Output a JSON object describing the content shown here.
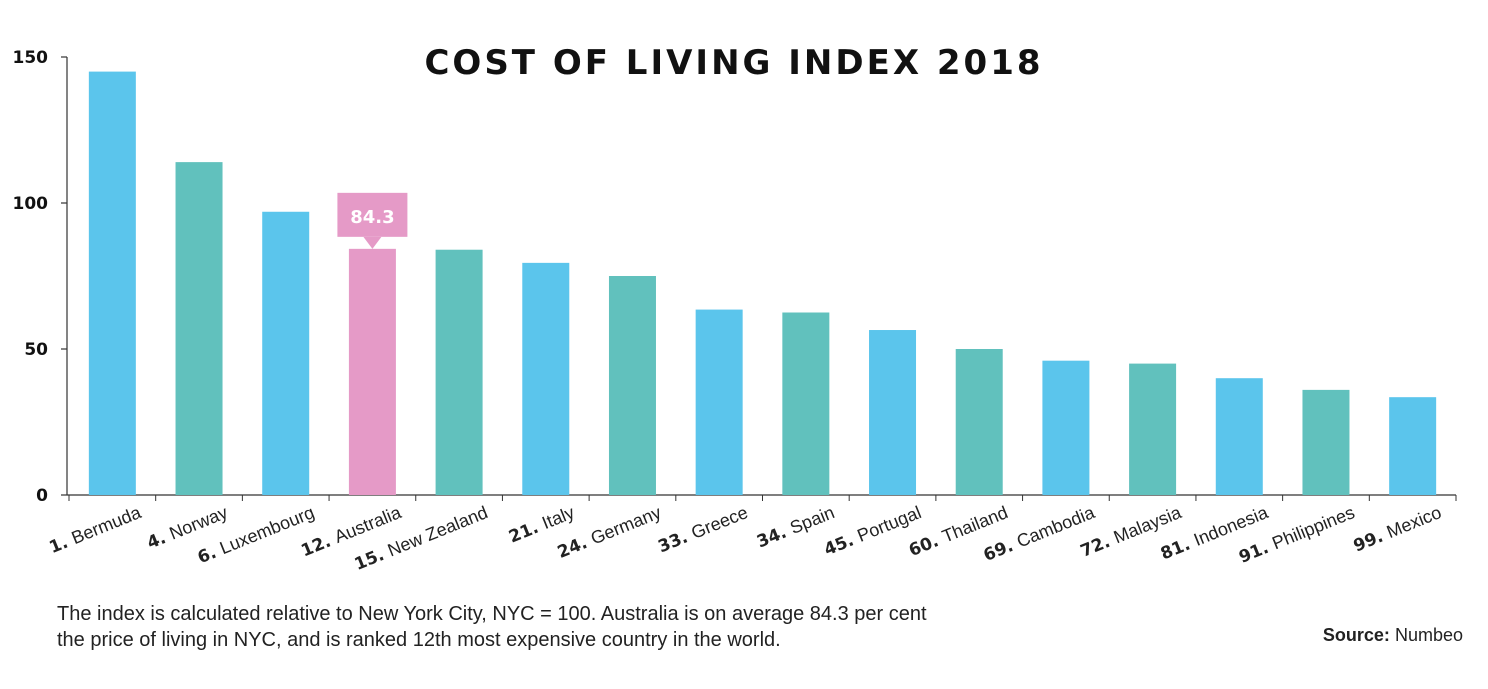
{
  "chart_data": {
    "type": "bar",
    "title": "COST OF LIVING INDEX 2018",
    "xlabel": "",
    "ylabel": "",
    "ylim": [
      0,
      150
    ],
    "yticks": [
      "0",
      "50",
      "100",
      "150"
    ],
    "grid": false,
    "categories": [
      {
        "rank": "1.",
        "name": "Bermuda"
      },
      {
        "rank": "4.",
        "name": "Norway"
      },
      {
        "rank": "6.",
        "name": "Luxembourg"
      },
      {
        "rank": "12.",
        "name": "Australia"
      },
      {
        "rank": "15.",
        "name": "New Zealand"
      },
      {
        "rank": "21.",
        "name": "Italy"
      },
      {
        "rank": "24.",
        "name": "Germany"
      },
      {
        "rank": "33.",
        "name": "Greece"
      },
      {
        "rank": "34.",
        "name": "Spain"
      },
      {
        "rank": "45.",
        "name": "Portugal"
      },
      {
        "rank": "60.",
        "name": "Thailand"
      },
      {
        "rank": "69.",
        "name": "Cambodia"
      },
      {
        "rank": "72.",
        "name": "Malaysia"
      },
      {
        "rank": "81.",
        "name": "Indonesia"
      },
      {
        "rank": "91.",
        "name": "Philippines"
      },
      {
        "rank": "99.",
        "name": "Mexico"
      }
    ],
    "values": [
      145,
      114,
      97,
      84.3,
      84,
      79.5,
      75,
      63.5,
      62.5,
      56.5,
      50,
      46,
      45,
      40,
      36,
      33.5
    ],
    "colors": [
      "#5bc5ec",
      "#61c1bd",
      "#5bc5ec",
      "#e59ac7",
      "#61c1bd",
      "#5bc5ec",
      "#61c1bd",
      "#5bc5ec",
      "#61c1bd",
      "#5bc5ec",
      "#61c1bd",
      "#5bc5ec",
      "#61c1bd",
      "#5bc5ec",
      "#61c1bd",
      "#5bc5ec"
    ],
    "highlight": {
      "index": 3,
      "label": "84.3",
      "color": "#e59ac7"
    }
  },
  "footnote": {
    "line1": "The index is calculated relative to New York City, NYC = 100. Australia is on average 84.3 per cent",
    "line2": "the price of living in NYC, and is ranked 12th most expensive country in the world."
  },
  "source": {
    "label": "Source:",
    "value": "Numbeo"
  }
}
